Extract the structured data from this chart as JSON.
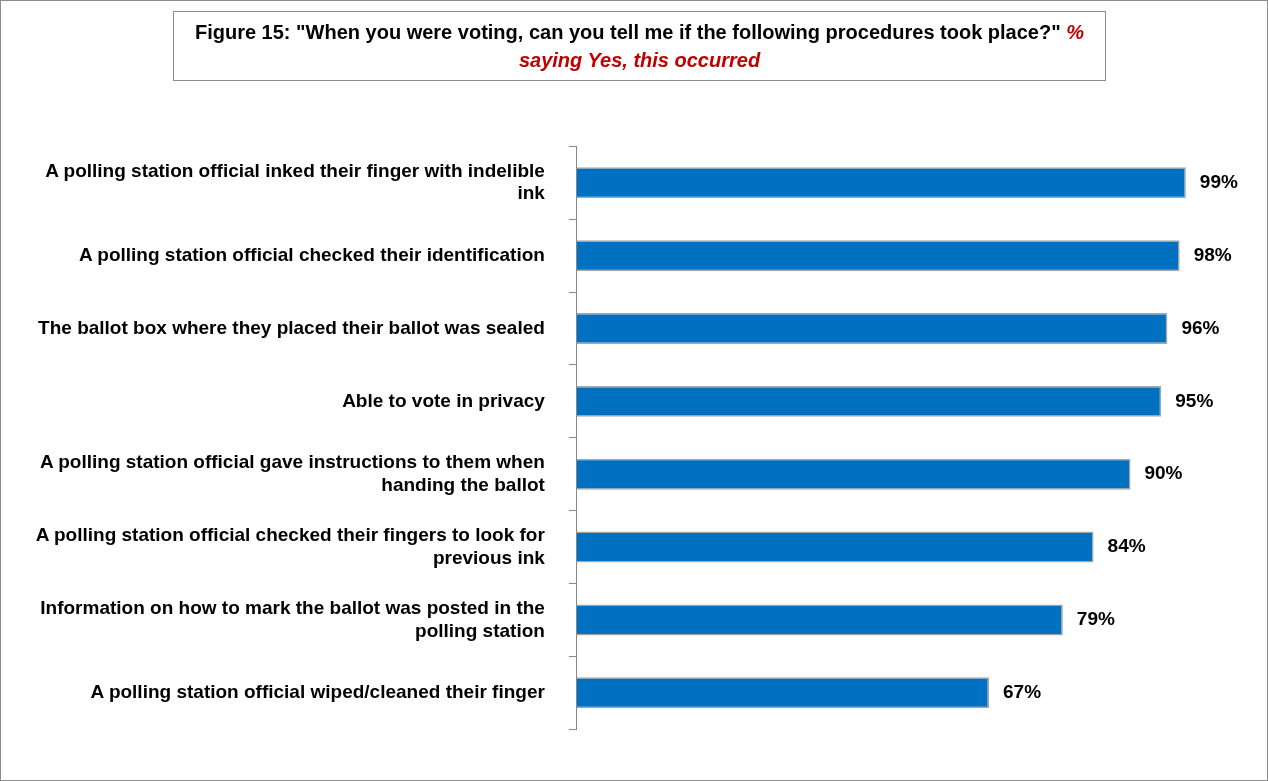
{
  "chart_data": {
    "type": "bar",
    "orientation": "horizontal",
    "title": "Figure 15: \"When you were voting, can you tell me if the following procedures took place?\"",
    "subtitle": "% saying Yes, this occurred",
    "categories": [
      "A polling station official inked their finger with indelible ink",
      "A polling station official checked their identification",
      "The ballot box where they placed their ballot was sealed",
      "Able to vote in privacy",
      "A polling station official gave instructions to them when handing the ballot",
      "A polling station official checked their fingers to look for previous ink",
      "Information on how to mark the ballot was posted in the polling station",
      "A polling station official wiped/cleaned their finger"
    ],
    "values": [
      99,
      98,
      96,
      95,
      90,
      84,
      79,
      67
    ],
    "value_labels": [
      "99%",
      "98%",
      "96%",
      "95%",
      "90%",
      "84%",
      "79%",
      "67%"
    ],
    "color": "#0070c0"
  }
}
